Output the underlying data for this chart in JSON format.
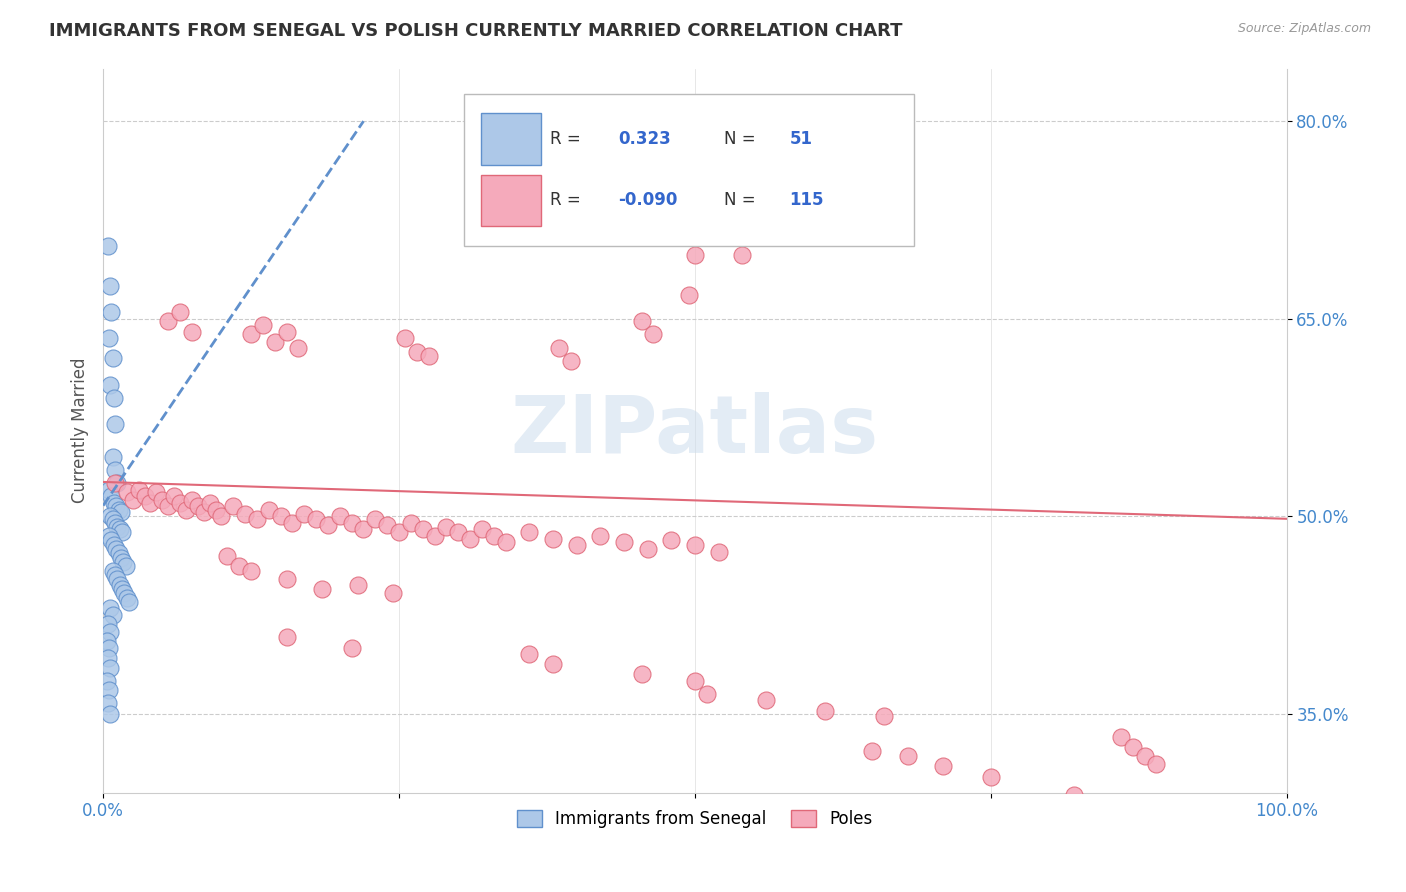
{
  "title": "IMMIGRANTS FROM SENEGAL VS POLISH CURRENTLY MARRIED CORRELATION CHART",
  "source": "Source: ZipAtlas.com",
  "ylabel": "Currently Married",
  "xlim": [
    0,
    1.0
  ],
  "ylim": [
    0.29,
    0.84
  ],
  "yticks": [
    0.35,
    0.5,
    0.65,
    0.8
  ],
  "ytick_labels": [
    "35.0%",
    "50.0%",
    "65.0%",
    "80.0%"
  ],
  "legend_label1": "Immigrants from Senegal",
  "legend_label2": "Poles",
  "blue_color": "#adc8e8",
  "pink_color": "#f5aabb",
  "blue_line_color": "#6090cc",
  "pink_line_color": "#e06878",
  "watermark": "ZIPatlas",
  "blue_trend_x": [
    0.0,
    0.22
  ],
  "blue_trend_y": [
    0.508,
    0.8
  ],
  "pink_trend_x": [
    0.0,
    1.0
  ],
  "pink_trend_y": [
    0.526,
    0.498
  ],
  "blue_dots": [
    [
      0.004,
      0.705
    ],
    [
      0.006,
      0.675
    ],
    [
      0.007,
      0.655
    ],
    [
      0.005,
      0.635
    ],
    [
      0.008,
      0.62
    ],
    [
      0.006,
      0.6
    ],
    [
      0.009,
      0.59
    ],
    [
      0.01,
      0.57
    ],
    [
      0.008,
      0.545
    ],
    [
      0.01,
      0.535
    ],
    [
      0.012,
      0.525
    ],
    [
      0.005,
      0.52
    ],
    [
      0.007,
      0.515
    ],
    [
      0.009,
      0.51
    ],
    [
      0.011,
      0.508
    ],
    [
      0.013,
      0.505
    ],
    [
      0.015,
      0.503
    ],
    [
      0.006,
      0.5
    ],
    [
      0.008,
      0.498
    ],
    [
      0.01,
      0.495
    ],
    [
      0.012,
      0.492
    ],
    [
      0.014,
      0.49
    ],
    [
      0.016,
      0.488
    ],
    [
      0.005,
      0.485
    ],
    [
      0.007,
      0.482
    ],
    [
      0.009,
      0.478
    ],
    [
      0.011,
      0.475
    ],
    [
      0.013,
      0.472
    ],
    [
      0.015,
      0.468
    ],
    [
      0.017,
      0.465
    ],
    [
      0.019,
      0.462
    ],
    [
      0.008,
      0.458
    ],
    [
      0.01,
      0.455
    ],
    [
      0.012,
      0.452
    ],
    [
      0.014,
      0.448
    ],
    [
      0.016,
      0.445
    ],
    [
      0.018,
      0.442
    ],
    [
      0.02,
      0.438
    ],
    [
      0.022,
      0.435
    ],
    [
      0.006,
      0.43
    ],
    [
      0.008,
      0.425
    ],
    [
      0.004,
      0.418
    ],
    [
      0.006,
      0.412
    ],
    [
      0.003,
      0.405
    ],
    [
      0.005,
      0.4
    ],
    [
      0.004,
      0.392
    ],
    [
      0.006,
      0.385
    ],
    [
      0.003,
      0.375
    ],
    [
      0.005,
      0.368
    ],
    [
      0.004,
      0.358
    ],
    [
      0.006,
      0.35
    ]
  ],
  "pink_dots": [
    [
      0.01,
      0.525
    ],
    [
      0.02,
      0.518
    ],
    [
      0.025,
      0.512
    ],
    [
      0.03,
      0.52
    ],
    [
      0.035,
      0.515
    ],
    [
      0.04,
      0.51
    ],
    [
      0.045,
      0.518
    ],
    [
      0.05,
      0.512
    ],
    [
      0.055,
      0.508
    ],
    [
      0.06,
      0.515
    ],
    [
      0.065,
      0.51
    ],
    [
      0.07,
      0.505
    ],
    [
      0.075,
      0.512
    ],
    [
      0.08,
      0.508
    ],
    [
      0.085,
      0.503
    ],
    [
      0.09,
      0.51
    ],
    [
      0.095,
      0.505
    ],
    [
      0.1,
      0.5
    ],
    [
      0.11,
      0.508
    ],
    [
      0.12,
      0.502
    ],
    [
      0.13,
      0.498
    ],
    [
      0.14,
      0.505
    ],
    [
      0.15,
      0.5
    ],
    [
      0.16,
      0.495
    ],
    [
      0.17,
      0.502
    ],
    [
      0.18,
      0.498
    ],
    [
      0.19,
      0.493
    ],
    [
      0.2,
      0.5
    ],
    [
      0.21,
      0.495
    ],
    [
      0.22,
      0.49
    ],
    [
      0.23,
      0.498
    ],
    [
      0.24,
      0.493
    ],
    [
      0.25,
      0.488
    ],
    [
      0.26,
      0.495
    ],
    [
      0.27,
      0.49
    ],
    [
      0.28,
      0.485
    ],
    [
      0.29,
      0.492
    ],
    [
      0.3,
      0.488
    ],
    [
      0.31,
      0.483
    ],
    [
      0.32,
      0.49
    ],
    [
      0.33,
      0.485
    ],
    [
      0.34,
      0.48
    ],
    [
      0.36,
      0.488
    ],
    [
      0.38,
      0.483
    ],
    [
      0.4,
      0.478
    ],
    [
      0.42,
      0.485
    ],
    [
      0.44,
      0.48
    ],
    [
      0.46,
      0.475
    ],
    [
      0.48,
      0.482
    ],
    [
      0.5,
      0.478
    ],
    [
      0.52,
      0.473
    ],
    [
      0.055,
      0.648
    ],
    [
      0.065,
      0.655
    ],
    [
      0.075,
      0.64
    ],
    [
      0.125,
      0.638
    ],
    [
      0.135,
      0.645
    ],
    [
      0.145,
      0.632
    ],
    [
      0.155,
      0.64
    ],
    [
      0.165,
      0.628
    ],
    [
      0.255,
      0.635
    ],
    [
      0.265,
      0.625
    ],
    [
      0.275,
      0.622
    ],
    [
      0.385,
      0.628
    ],
    [
      0.395,
      0.618
    ],
    [
      0.455,
      0.648
    ],
    [
      0.465,
      0.638
    ],
    [
      0.5,
      0.698
    ],
    [
      0.54,
      0.698
    ],
    [
      0.495,
      0.668
    ],
    [
      0.105,
      0.47
    ],
    [
      0.115,
      0.462
    ],
    [
      0.125,
      0.458
    ],
    [
      0.155,
      0.452
    ],
    [
      0.185,
      0.445
    ],
    [
      0.215,
      0.448
    ],
    [
      0.245,
      0.442
    ],
    [
      0.155,
      0.408
    ],
    [
      0.21,
      0.4
    ],
    [
      0.36,
      0.395
    ],
    [
      0.38,
      0.388
    ],
    [
      0.455,
      0.38
    ],
    [
      0.5,
      0.375
    ],
    [
      0.51,
      0.365
    ],
    [
      0.56,
      0.36
    ],
    [
      0.61,
      0.352
    ],
    [
      0.66,
      0.348
    ],
    [
      0.65,
      0.322
    ],
    [
      0.68,
      0.318
    ],
    [
      0.71,
      0.31
    ],
    [
      0.75,
      0.302
    ],
    [
      0.86,
      0.332
    ],
    [
      0.87,
      0.325
    ],
    [
      0.88,
      0.318
    ],
    [
      0.89,
      0.312
    ],
    [
      0.82,
      0.288
    ]
  ]
}
